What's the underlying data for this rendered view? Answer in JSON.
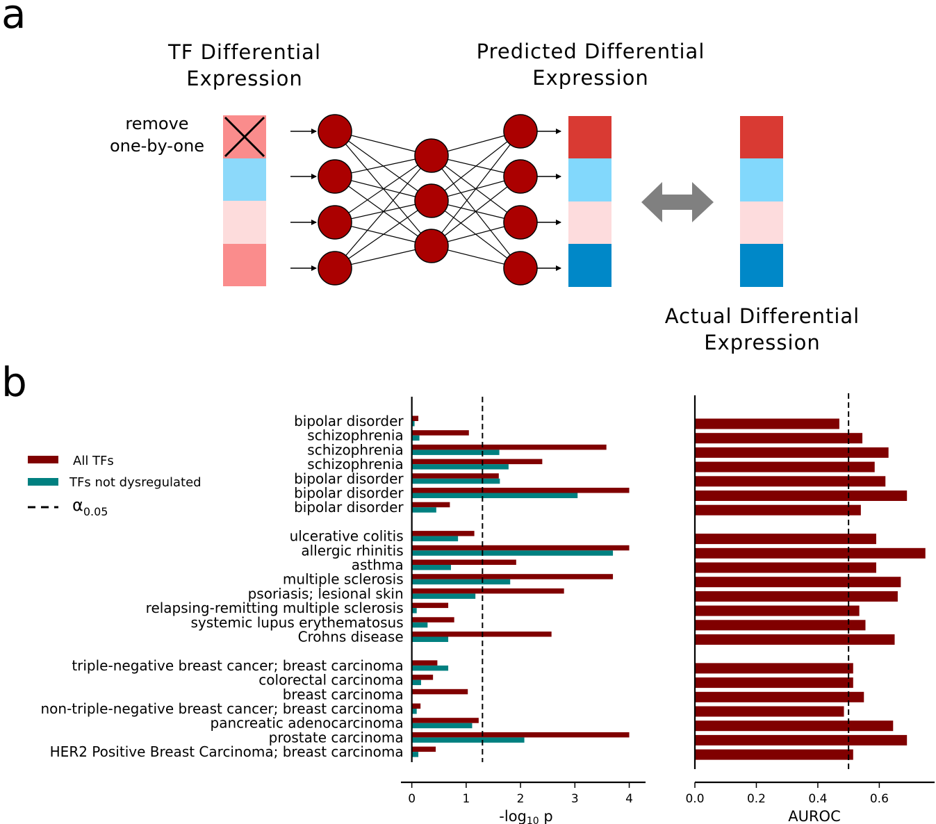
{
  "panel_a": {
    "letter": "a",
    "title_tf": [
      "TF Differential",
      "Expression"
    ],
    "title_predicted": [
      "Predicted Differential",
      "Expression"
    ],
    "title_actual": [
      "Actual Differential",
      "Expression"
    ],
    "remove_label": [
      "remove",
      "one-by-one"
    ],
    "input_colors": [
      "#fa8c8c",
      "#8cd9fa",
      "#fddcdc",
      "#fa8c8c"
    ],
    "predicted_colors": [
      "#d93a33",
      "#82d8fc",
      "#fddcdd",
      "#0088c8"
    ],
    "actual_colors": [
      "#d93a33",
      "#82d8fc",
      "#fddcdd",
      "#0088c8"
    ],
    "node_color": "#ab0000",
    "arrow_color": "#808080"
  },
  "panel_b": {
    "letter": "b",
    "legend": {
      "all_tfs": "All TFs",
      "not_dysregulated": "TFs not dysregulated",
      "alpha_symbol": "α",
      "alpha_subscript": "0.05"
    },
    "xlabel_left": {
      "prefix": "-log",
      "subscript": "10",
      "suffix": " p"
    }
  },
  "colors": {
    "all_tfs": "#800000",
    "not_dysregulated": "#008080"
  },
  "chart_data": [
    {
      "type": "bar",
      "orientation": "horizontal",
      "categories": [
        "bipolar disorder",
        "schizophrenia",
        "schizophrenia",
        "schizophrenia",
        "bipolar disorder",
        "bipolar disorder",
        "bipolar disorder",
        "ulcerative colitis",
        "allergic rhinitis",
        "asthma",
        "multiple sclerosis",
        "psoriasis; lesional skin",
        "relapsing-remitting multiple sclerosis",
        "systemic lupus erythematosus",
        "Crohns disease",
        "triple-negative breast cancer; breast carcinoma",
        "colorectal carcinoma",
        "breast carcinoma",
        "non-triple-negative breast cancer; breast carcinoma",
        "pancreatic adenocarcinoma",
        "prostate carcinoma",
        "HER2 Positive Breast Carcinoma; breast carcinoma"
      ],
      "groups": [
        7,
        8,
        7
      ],
      "series": [
        {
          "name": "All TFs",
          "values": [
            0.12,
            1.05,
            3.58,
            2.4,
            1.6,
            4.0,
            0.7,
            1.15,
            4.0,
            1.92,
            3.7,
            2.8,
            0.67,
            0.78,
            2.57,
            0.47,
            0.39,
            1.03,
            0.16,
            1.23,
            4.0,
            0.44
          ]
        },
        {
          "name": "TFs not dysregulated",
          "values": [
            0.05,
            0.14,
            1.61,
            1.78,
            1.62,
            3.05,
            0.45,
            0.85,
            3.7,
            0.72,
            1.81,
            1.17,
            0.09,
            0.29,
            0.67,
            0.67,
            0.17,
            0.0,
            0.09,
            1.11,
            2.07,
            0.12
          ]
        }
      ],
      "threshold": 1.3,
      "xlim": [
        -0.2,
        4.3
      ],
      "xticks": [
        0,
        1,
        2,
        3,
        4
      ]
    },
    {
      "type": "bar",
      "orientation": "horizontal",
      "groups": [
        7,
        8,
        7
      ],
      "series": [
        {
          "name": "All TFs",
          "values": [
            0.47,
            0.545,
            0.63,
            0.585,
            0.62,
            0.69,
            0.54,
            0.59,
            0.75,
            0.59,
            0.67,
            0.66,
            0.535,
            0.555,
            0.65,
            0.515,
            0.515,
            0.55,
            0.485,
            0.645,
            0.69,
            0.515
          ]
        }
      ],
      "threshold": 0.5,
      "xlim": [
        0.0,
        0.78
      ],
      "xticks": [
        0.0,
        0.2,
        0.4,
        0.6
      ],
      "xlabel": "AUROC"
    }
  ]
}
